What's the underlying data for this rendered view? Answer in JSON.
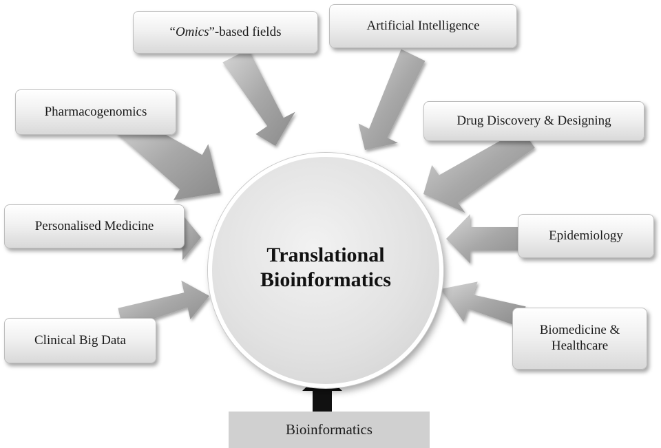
{
  "center": {
    "line1": "Translational",
    "line2": "Bioinformatics"
  },
  "inputs": {
    "omics": {
      "open_quote": "“",
      "italic": "Omics",
      "rest": "”-based fields"
    },
    "artificial_intelligence": "Artificial Intelligence",
    "pharmacogenomics": "Pharmacogenomics",
    "drug_discovery": "Drug Discovery & Designing",
    "personalised_medicine": "Personalised Medicine",
    "epidemiology": "Epidemiology",
    "clinical_big_data": "Clinical Big Data",
    "biomedicine": {
      "line1": "Biomedicine &",
      "line2": "Healthcare"
    },
    "bioinformatics": "Bioinformatics"
  },
  "colors": {
    "arrow_gray": "#a9a9a9",
    "arrow_black": "#111111",
    "box_flat": "#d0d0d0"
  }
}
